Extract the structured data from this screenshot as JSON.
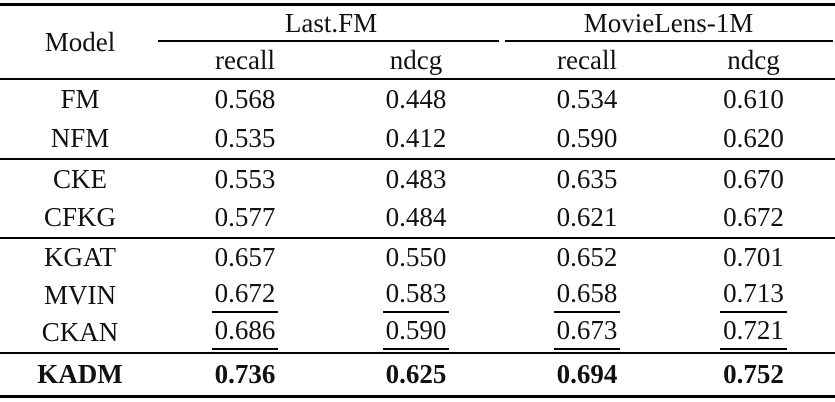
{
  "colors": {
    "background": "#ffffff",
    "text": "#111111",
    "rule": "#000000"
  },
  "table": {
    "model_header": "Model",
    "groups": [
      {
        "label": "Last.FM",
        "subcolumns": [
          "recall",
          "ndcg"
        ]
      },
      {
        "label": "MovieLens-1M",
        "subcolumns": [
          "recall",
          "ndcg"
        ]
      }
    ],
    "sections": [
      {
        "rows": [
          {
            "model": "FM",
            "values": [
              "0.568",
              "0.448",
              "0.534",
              "0.610"
            ],
            "bold": false,
            "underline_values": false
          },
          {
            "model": "NFM",
            "values": [
              "0.535",
              "0.412",
              "0.590",
              "0.620"
            ],
            "bold": false,
            "underline_values": false
          }
        ]
      },
      {
        "rows": [
          {
            "model": "CKE",
            "values": [
              "0.553",
              "0.483",
              "0.635",
              "0.670"
            ],
            "bold": false,
            "underline_values": false
          },
          {
            "model": "CFKG",
            "values": [
              "0.577",
              "0.484",
              "0.621",
              "0.672"
            ],
            "bold": false,
            "underline_values": false
          }
        ]
      },
      {
        "rows": [
          {
            "model": "KGAT",
            "values": [
              "0.657",
              "0.550",
              "0.652",
              "0.701"
            ],
            "bold": false,
            "underline_values": false
          },
          {
            "model": "MVIN",
            "values": [
              "0.672",
              "0.583",
              "0.658",
              "0.713"
            ],
            "bold": false,
            "underline_values": true
          },
          {
            "model": "CKAN",
            "values": [
              "0.686",
              "0.590",
              "0.673",
              "0.721"
            ],
            "bold": false,
            "underline_values": true
          }
        ]
      },
      {
        "rows": [
          {
            "model": "KADM",
            "values": [
              "0.736",
              "0.625",
              "0.694",
              "0.752"
            ],
            "bold": true,
            "underline_values": false
          }
        ]
      }
    ]
  }
}
